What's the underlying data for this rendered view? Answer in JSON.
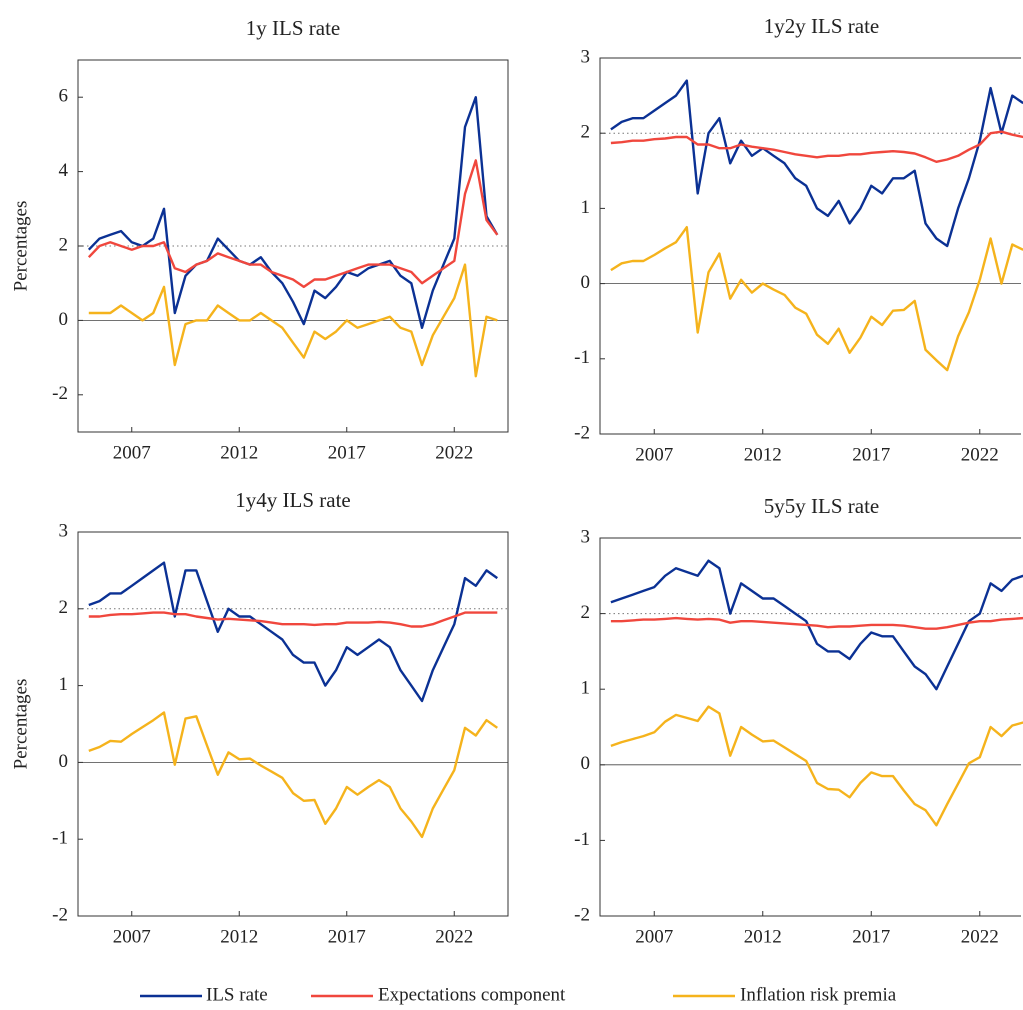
{
  "chart_data": [
    {
      "type": "line",
      "title": "1y ILS rate",
      "ylabel": "Percentages",
      "x": [
        2005,
        2005.5,
        2006,
        2006.5,
        2007,
        2007.5,
        2008,
        2008.5,
        2009,
        2009.5,
        2010,
        2010.5,
        2011,
        2011.5,
        2012,
        2012.5,
        2013,
        2013.5,
        2014,
        2014.5,
        2015,
        2015.5,
        2016,
        2016.5,
        2017,
        2017.5,
        2018,
        2018.5,
        2019,
        2019.5,
        2020,
        2020.5,
        2021,
        2021.5,
        2022,
        2022.5,
        2023,
        2023.5,
        2024
      ],
      "xlim": [
        2004.5,
        2024.5
      ],
      "xticks": [
        2007,
        2012,
        2017,
        2022
      ],
      "ylim": [
        -3,
        7
      ],
      "yticks": [
        -2,
        0,
        2,
        4,
        6
      ],
      "hlines": [
        {
          "y": 0,
          "style": "solid"
        },
        {
          "y": 2,
          "style": "dotted"
        }
      ],
      "series": [
        {
          "name": "ILS rate",
          "color": "#0b3194",
          "values": [
            1.9,
            2.2,
            2.3,
            2.4,
            2.1,
            2.0,
            2.2,
            3.0,
            0.2,
            1.2,
            1.5,
            1.6,
            2.2,
            1.9,
            1.6,
            1.5,
            1.7,
            1.3,
            1.0,
            0.5,
            -0.1,
            0.8,
            0.6,
            0.9,
            1.3,
            1.2,
            1.4,
            1.5,
            1.6,
            1.2,
            1.0,
            -0.2,
            0.8,
            1.5,
            2.2,
            5.2,
            6.0,
            2.8,
            2.3
          ]
        },
        {
          "name": "Expectations component",
          "color": "#f0473d",
          "values": [
            1.7,
            2.0,
            2.1,
            2.0,
            1.9,
            2.0,
            2.0,
            2.1,
            1.4,
            1.3,
            1.5,
            1.6,
            1.8,
            1.7,
            1.6,
            1.5,
            1.5,
            1.3,
            1.2,
            1.1,
            0.9,
            1.1,
            1.1,
            1.2,
            1.3,
            1.4,
            1.5,
            1.5,
            1.5,
            1.4,
            1.3,
            1.0,
            1.2,
            1.4,
            1.6,
            3.4,
            4.3,
            2.7,
            2.3
          ]
        },
        {
          "name": "Inflation risk premia",
          "color": "#f5b31c",
          "values": [
            0.2,
            0.2,
            0.2,
            0.4,
            0.2,
            0.0,
            0.2,
            0.9,
            -1.2,
            -0.1,
            0.0,
            0.0,
            0.4,
            0.2,
            0.0,
            0.0,
            0.2,
            0.0,
            -0.2,
            -0.6,
            -1.0,
            -0.3,
            -0.5,
            -0.3,
            0.0,
            -0.2,
            -0.1,
            0.0,
            0.1,
            -0.2,
            -0.3,
            -1.2,
            -0.4,
            0.1,
            0.6,
            1.5,
            -1.5,
            0.1,
            0.0
          ]
        }
      ]
    },
    {
      "type": "line",
      "title": "1y2y ILS rate",
      "x": [
        2005,
        2005.5,
        2006,
        2006.5,
        2007,
        2007.5,
        2008,
        2008.5,
        2009,
        2009.5,
        2010,
        2010.5,
        2011,
        2011.5,
        2012,
        2012.5,
        2013,
        2013.5,
        2014,
        2014.5,
        2015,
        2015.5,
        2016,
        2016.5,
        2017,
        2017.5,
        2018,
        2018.5,
        2019,
        2019.5,
        2020,
        2020.5,
        2021,
        2021.5,
        2022,
        2022.5,
        2023,
        2023.5,
        2024
      ],
      "xlim": [
        2004.5,
        2023.9
      ],
      "xticks": [
        2007,
        2012,
        2017,
        2022
      ],
      "ylim": [
        -2,
        3
      ],
      "yticks": [
        -2,
        -1,
        0,
        1,
        2,
        3
      ],
      "hlines": [
        {
          "y": 0,
          "style": "solid"
        },
        {
          "y": 2,
          "style": "dotted"
        }
      ],
      "series": [
        {
          "color": "#0b3194",
          "values": [
            2.05,
            2.15,
            2.2,
            2.2,
            2.3,
            2.4,
            2.5,
            2.7,
            1.2,
            2.0,
            2.2,
            1.6,
            1.9,
            1.7,
            1.8,
            1.7,
            1.6,
            1.4,
            1.3,
            1.0,
            0.9,
            1.1,
            0.8,
            1.0,
            1.3,
            1.2,
            1.4,
            1.4,
            1.5,
            0.8,
            0.6,
            0.5,
            1.0,
            1.4,
            1.9,
            2.6,
            2.0,
            2.5,
            2.4
          ]
        },
        {
          "color": "#f0473d",
          "values": [
            1.87,
            1.88,
            1.9,
            1.9,
            1.92,
            1.93,
            1.95,
            1.95,
            1.85,
            1.85,
            1.8,
            1.8,
            1.85,
            1.82,
            1.8,
            1.78,
            1.75,
            1.72,
            1.7,
            1.68,
            1.7,
            1.7,
            1.72,
            1.72,
            1.74,
            1.75,
            1.76,
            1.75,
            1.73,
            1.68,
            1.62,
            1.65,
            1.7,
            1.78,
            1.85,
            2.0,
            2.02,
            1.98,
            1.95
          ]
        },
        {
          "color": "#f5b31c",
          "values": [
            0.18,
            0.27,
            0.3,
            0.3,
            0.38,
            0.47,
            0.55,
            0.75,
            -0.65,
            0.15,
            0.4,
            -0.2,
            0.05,
            -0.12,
            0.0,
            -0.08,
            -0.15,
            -0.32,
            -0.4,
            -0.68,
            -0.8,
            -0.6,
            -0.92,
            -0.72,
            -0.44,
            -0.55,
            -0.36,
            -0.35,
            -0.23,
            -0.88,
            -1.02,
            -1.15,
            -0.7,
            -0.38,
            0.05,
            0.6,
            0.0,
            0.52,
            0.45
          ]
        }
      ]
    },
    {
      "type": "line",
      "title": "1y4y ILS rate",
      "ylabel": "Percentages",
      "x": [
        2005,
        2005.5,
        2006,
        2006.5,
        2007,
        2007.5,
        2008,
        2008.5,
        2009,
        2009.5,
        2010,
        2010.5,
        2011,
        2011.5,
        2012,
        2012.5,
        2013,
        2013.5,
        2014,
        2014.5,
        2015,
        2015.5,
        2016,
        2016.5,
        2017,
        2017.5,
        2018,
        2018.5,
        2019,
        2019.5,
        2020,
        2020.5,
        2021,
        2021.5,
        2022,
        2022.5,
        2023,
        2023.5,
        2024
      ],
      "xlim": [
        2004.5,
        2024.5
      ],
      "xticks": [
        2007,
        2012,
        2017,
        2022
      ],
      "ylim": [
        -2,
        3
      ],
      "yticks": [
        -2,
        -1,
        0,
        1,
        2,
        3
      ],
      "hlines": [
        {
          "y": 0,
          "style": "solid"
        },
        {
          "y": 2,
          "style": "dotted"
        }
      ],
      "series": [
        {
          "color": "#0b3194",
          "values": [
            2.05,
            2.1,
            2.2,
            2.2,
            2.3,
            2.4,
            2.5,
            2.6,
            1.9,
            2.5,
            2.5,
            2.1,
            1.7,
            2.0,
            1.9,
            1.9,
            1.8,
            1.7,
            1.6,
            1.4,
            1.3,
            1.3,
            1.0,
            1.2,
            1.5,
            1.4,
            1.5,
            1.6,
            1.5,
            1.2,
            1.0,
            0.8,
            1.2,
            1.5,
            1.8,
            2.4,
            2.3,
            2.5,
            2.4
          ]
        },
        {
          "color": "#f0473d",
          "values": [
            1.9,
            1.9,
            1.92,
            1.93,
            1.93,
            1.94,
            1.95,
            1.95,
            1.93,
            1.93,
            1.9,
            1.88,
            1.86,
            1.87,
            1.86,
            1.85,
            1.84,
            1.82,
            1.8,
            1.8,
            1.8,
            1.79,
            1.8,
            1.8,
            1.82,
            1.82,
            1.82,
            1.83,
            1.82,
            1.8,
            1.77,
            1.77,
            1.8,
            1.85,
            1.9,
            1.95,
            1.95,
            1.95,
            1.95
          ]
        },
        {
          "color": "#f5b31c",
          "values": [
            0.15,
            0.2,
            0.28,
            0.27,
            0.37,
            0.46,
            0.55,
            0.65,
            -0.03,
            0.57,
            0.6,
            0.22,
            -0.16,
            0.13,
            0.04,
            0.05,
            -0.04,
            -0.12,
            -0.2,
            -0.4,
            -0.5,
            -0.49,
            -0.8,
            -0.6,
            -0.32,
            -0.42,
            -0.32,
            -0.23,
            -0.32,
            -0.6,
            -0.77,
            -0.97,
            -0.6,
            -0.35,
            -0.1,
            0.45,
            0.35,
            0.55,
            0.45
          ]
        }
      ]
    },
    {
      "type": "line",
      "title": "5y5y ILS rate",
      "x": [
        2005,
        2005.5,
        2006,
        2006.5,
        2007,
        2007.5,
        2008,
        2008.5,
        2009,
        2009.5,
        2010,
        2010.5,
        2011,
        2011.5,
        2012,
        2012.5,
        2013,
        2013.5,
        2014,
        2014.5,
        2015,
        2015.5,
        2016,
        2016.5,
        2017,
        2017.5,
        2018,
        2018.5,
        2019,
        2019.5,
        2020,
        2020.5,
        2021,
        2021.5,
        2022,
        2022.5,
        2023,
        2023.5,
        2024
      ],
      "xlim": [
        2004.5,
        2023.9
      ],
      "xticks": [
        2007,
        2012,
        2017,
        2022
      ],
      "ylim": [
        -2,
        3
      ],
      "yticks": [
        -2,
        -1,
        0,
        1,
        2,
        3
      ],
      "hlines": [
        {
          "y": 0,
          "style": "solid"
        },
        {
          "y": 2,
          "style": "dotted"
        }
      ],
      "series": [
        {
          "color": "#0b3194",
          "values": [
            2.15,
            2.2,
            2.25,
            2.3,
            2.35,
            2.5,
            2.6,
            2.55,
            2.5,
            2.7,
            2.6,
            2.0,
            2.4,
            2.3,
            2.2,
            2.2,
            2.1,
            2.0,
            1.9,
            1.6,
            1.5,
            1.5,
            1.4,
            1.6,
            1.75,
            1.7,
            1.7,
            1.5,
            1.3,
            1.2,
            1.0,
            1.3,
            1.6,
            1.9,
            2.0,
            2.4,
            2.3,
            2.45,
            2.5
          ]
        },
        {
          "color": "#f0473d",
          "values": [
            1.9,
            1.9,
            1.91,
            1.92,
            1.92,
            1.93,
            1.94,
            1.93,
            1.92,
            1.93,
            1.92,
            1.88,
            1.9,
            1.9,
            1.89,
            1.88,
            1.87,
            1.86,
            1.85,
            1.84,
            1.82,
            1.83,
            1.83,
            1.84,
            1.85,
            1.85,
            1.85,
            1.84,
            1.82,
            1.8,
            1.8,
            1.82,
            1.85,
            1.88,
            1.9,
            1.9,
            1.92,
            1.93,
            1.94
          ]
        },
        {
          "color": "#f5b31c",
          "values": [
            0.25,
            0.3,
            0.34,
            0.38,
            0.43,
            0.57,
            0.66,
            0.62,
            0.58,
            0.77,
            0.68,
            0.12,
            0.5,
            0.4,
            0.31,
            0.32,
            0.23,
            0.14,
            0.05,
            -0.24,
            -0.32,
            -0.33,
            -0.43,
            -0.24,
            -0.1,
            -0.15,
            -0.15,
            -0.34,
            -0.52,
            -0.6,
            -0.8,
            -0.52,
            -0.25,
            0.02,
            0.1,
            0.5,
            0.38,
            0.52,
            0.56
          ]
        }
      ]
    }
  ]
}
